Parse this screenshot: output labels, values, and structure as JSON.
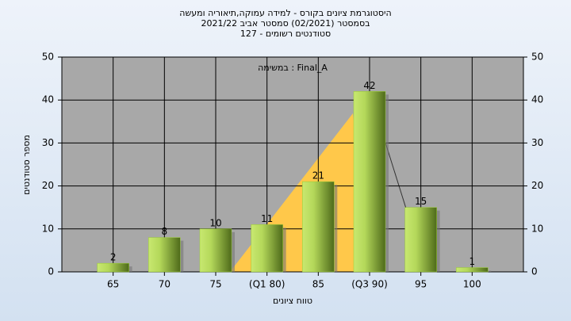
{
  "chart_data": {
    "type": "bar",
    "title": [
      "היסטוגרמת ציונים בקורס - למידה עמוקה,תיאוריה ומעשה",
      "בסמסטר  (02/2021)  סמסטר אביב 2021/22",
      "סטודנטים רשומים - 127"
    ],
    "annotation": "במשימה : Final_A",
    "x_label": "טווח ציונים",
    "y_label": "מספר סטודנטים",
    "categories": [
      "65",
      "70",
      "75",
      "(Q1 80)",
      "85",
      "(Q3 90)",
      "95",
      "100"
    ],
    "values": [
      2,
      8,
      10,
      11,
      21,
      42,
      15,
      1
    ],
    "color": "#9acd32",
    "ylim": [
      0,
      50
    ],
    "yticks": [
      0,
      10,
      20,
      30,
      40,
      50
    ],
    "y2lim": [
      0,
      50
    ],
    "y2ticks": [
      0,
      10,
      20,
      30,
      40,
      50
    ],
    "grid": true
  }
}
